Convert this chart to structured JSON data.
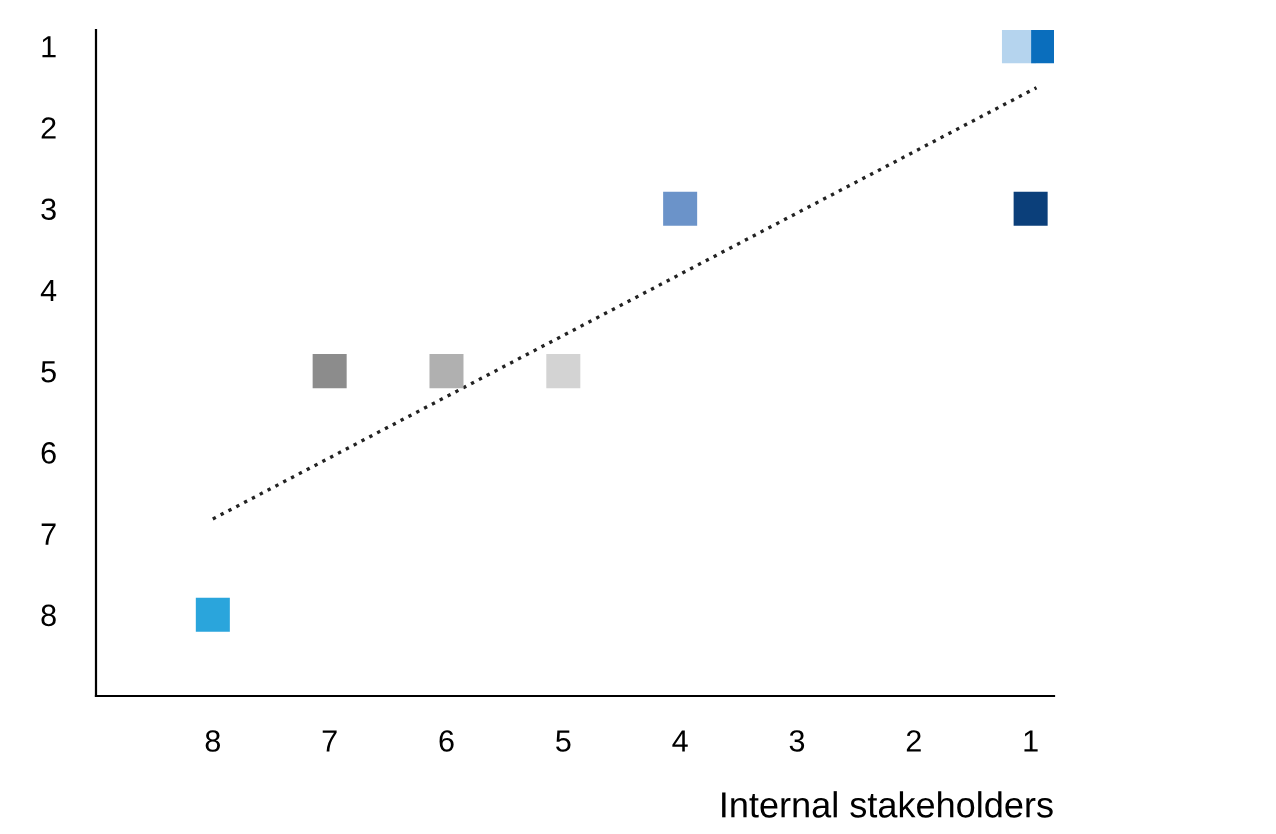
{
  "chart_data": {
    "type": "scatter",
    "xlabel": "Internal stakeholders",
    "xlim": [
      9,
      0.8
    ],
    "ylim": [
      9,
      0.8
    ],
    "xticks": [
      8,
      7,
      6,
      5,
      4,
      3,
      2,
      1
    ],
    "yticks": [
      1,
      2,
      3,
      4,
      5,
      6,
      7,
      8
    ],
    "grid": false,
    "legend": false,
    "marker": "square",
    "series": [
      {
        "x": [
          1.1,
          0.85,
          1,
          4,
          7,
          6,
          5,
          8
        ],
        "values": [
          1,
          1,
          3,
          3,
          5,
          5,
          5,
          8
        ],
        "colors": [
          "#b5d4ee",
          "#0a6ebd",
          "#0b3f7a",
          "#6b93c9",
          "#8c8c8c",
          "#b0b0b0",
          "#d3d3d3",
          "#2aa5dc"
        ]
      },
      {
        "type": "line",
        "x": [
          8,
          0.95
        ],
        "values": [
          6.82,
          1.51
        ],
        "color": "#222222",
        "line_style": "dotted",
        "marker": "none"
      }
    ]
  }
}
